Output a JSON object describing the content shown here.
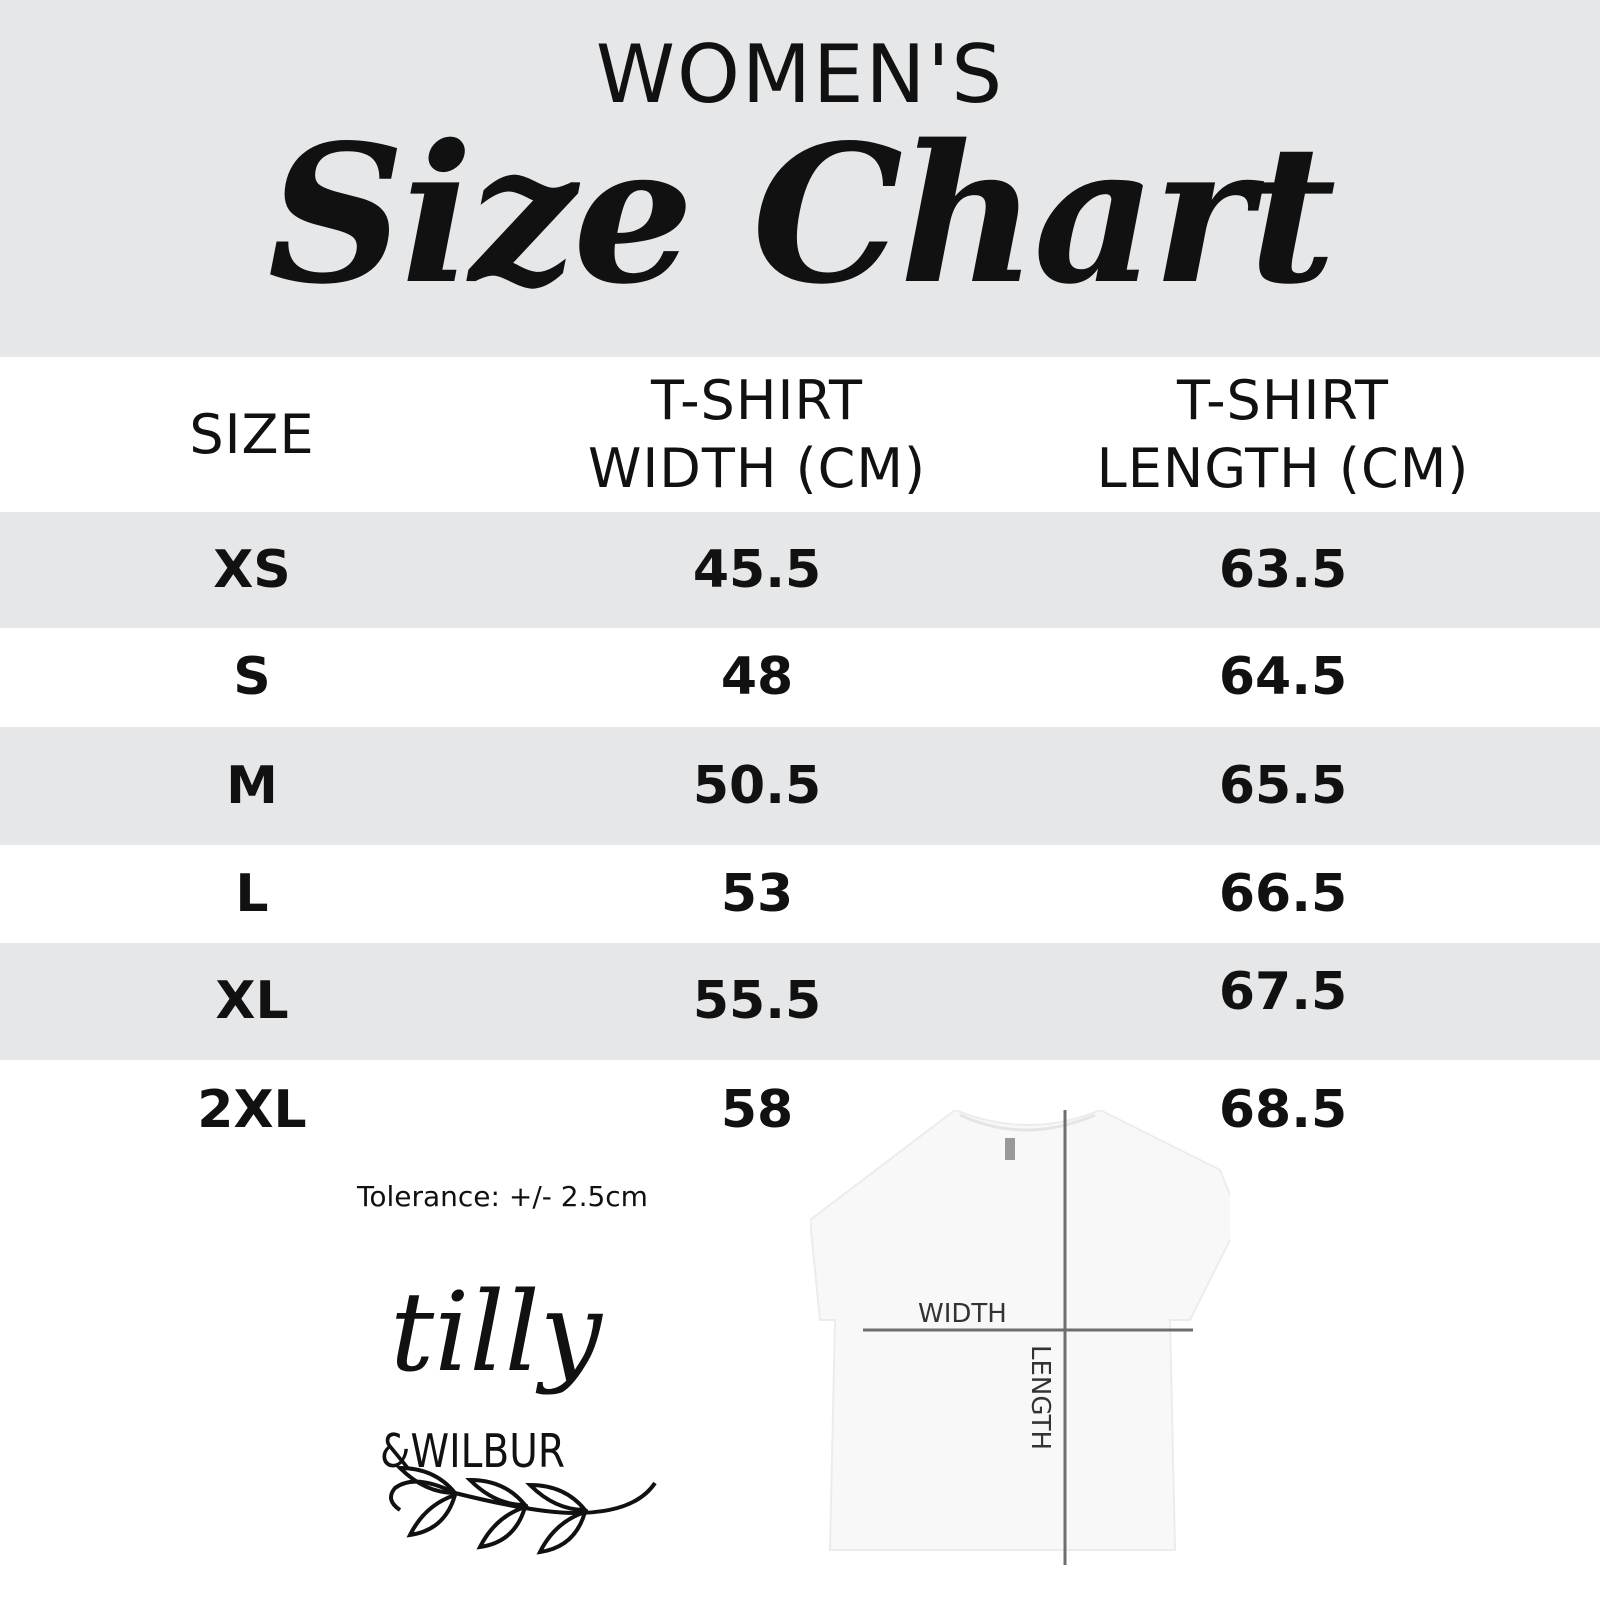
{
  "header": {
    "kicker": "WOMEN'S",
    "title": "Size Chart"
  },
  "table": {
    "columns": [
      "SIZE",
      "T-SHIRT WIDTH (CM)",
      "T-SHIRT LENGTH (CM)"
    ],
    "column_lines": [
      [
        "SIZE"
      ],
      [
        "T-SHIRT",
        "WIDTH (CM)"
      ],
      [
        "T-SHIRT",
        "LENGTH (CM)"
      ]
    ],
    "rows": [
      {
        "size": "XS",
        "width": "45.5",
        "length": "63.5"
      },
      {
        "size": "S",
        "width": "48",
        "length": "64.5"
      },
      {
        "size": "M",
        "width": "50.5",
        "length": "65.5"
      },
      {
        "size": "L",
        "width": "53",
        "length": "66.5"
      },
      {
        "size": "XL",
        "width": "55.5",
        "length": "67.5"
      },
      {
        "size": "2XL",
        "width": "58",
        "length": "68.5"
      }
    ]
  },
  "tolerance": "Tolerance: +/- 2.5cm",
  "logo": {
    "line1": "tilly",
    "line2": "&WILBUR"
  },
  "diagram": {
    "width_label": "WIDTH",
    "length_label": "LENGTH"
  },
  "colors": {
    "band": "#e6e7e8",
    "text": "#111111",
    "measure_line": "#6d6e70"
  }
}
